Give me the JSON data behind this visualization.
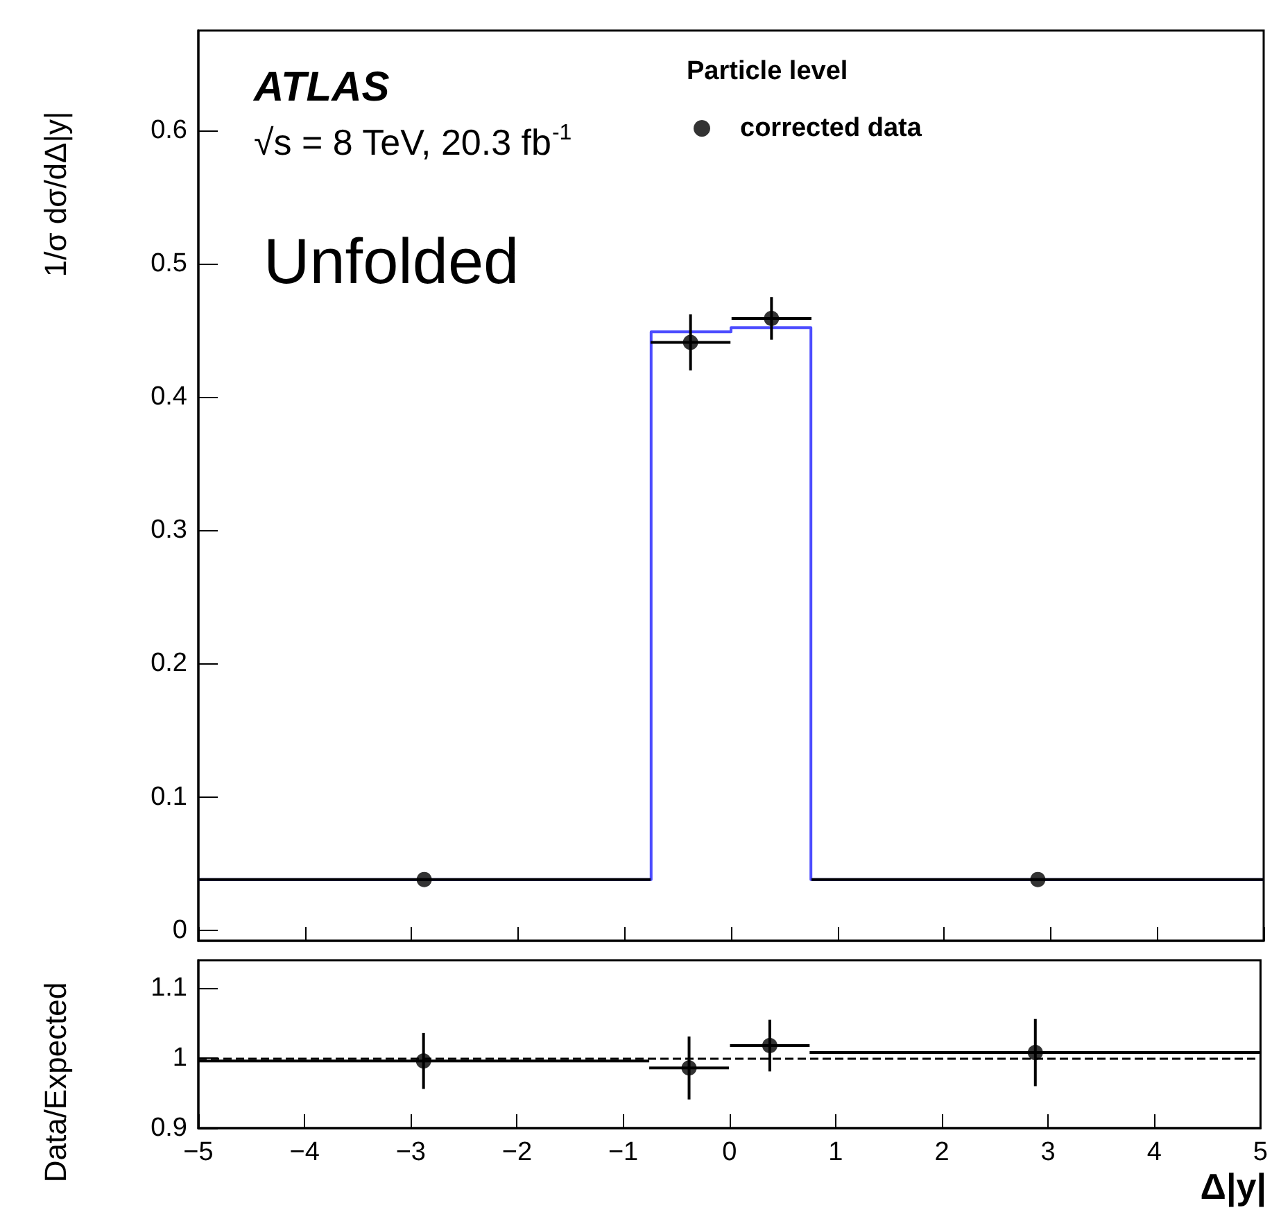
{
  "chart_data": [
    {
      "type": "histogram",
      "ylabel": "1/σ dσ/dΔ|y|",
      "legend_title": "Particle level",
      "annotations": [
        "ATLAS",
        "√s = 8 TeV, 20.3 fb$^{-1}$",
        "Unfolded"
      ],
      "xlim": [
        -5,
        5
      ],
      "xticks": [
        -5,
        -4,
        -3,
        -2,
        -1,
        0,
        1,
        2,
        3,
        4,
        5
      ],
      "ylim": [
        -0.008,
        0.675
      ],
      "yticks": [
        0,
        0.1,
        0.2,
        0.3,
        0.4,
        0.5,
        0.6
      ],
      "tick_labels": "y",
      "grid": false,
      "legend": "top right",
      "series": [
        {
          "color": "#4d4dff",
          "bins": [
            -5,
            -0.75,
            0,
            0.75,
            5
          ],
          "values": [
            0.038,
            0.449,
            0.452,
            0.038
          ]
        },
        {
          "type": "scatter",
          "name": "corrected data",
          "color": "#000000",
          "marker": "circle",
          "x": [
            -2.88,
            -0.38,
            0.38,
            2.88
          ],
          "values": [
            0.038,
            0.441,
            0.459,
            0.038
          ],
          "errors": [
            null,
            0.021,
            0.016,
            null
          ],
          "xerrors": [
            2.125,
            0.375,
            0.375,
            2.125
          ]
        }
      ]
    },
    {
      "type": "scatter",
      "ylabel": "Data/Expected",
      "xlabel": "Δ|y|",
      "xlim": [
        -5,
        5
      ],
      "xticks": [
        -5,
        -4,
        -3,
        -2,
        -1,
        0,
        1,
        2,
        3,
        4,
        5
      ],
      "ylim": [
        0.9,
        1.14
      ],
      "yticks": [
        0.9,
        1,
        1.1
      ],
      "grid": false,
      "legend": false,
      "ref_lines": [
        {
          "axis": "y",
          "value": 1,
          "line_style": "dashed",
          "color": "#000000"
        }
      ],
      "series": [
        {
          "color": "#000000",
          "marker": "circle",
          "x": [
            -2.88,
            -0.38,
            0.38,
            2.88
          ],
          "values": [
            0.996,
            0.986,
            1.018,
            1.008
          ],
          "errors": [
            0.04,
            0.045,
            0.037,
            0.048
          ],
          "xerrors": [
            2.125,
            0.375,
            0.375,
            2.125
          ]
        }
      ]
    }
  ]
}
